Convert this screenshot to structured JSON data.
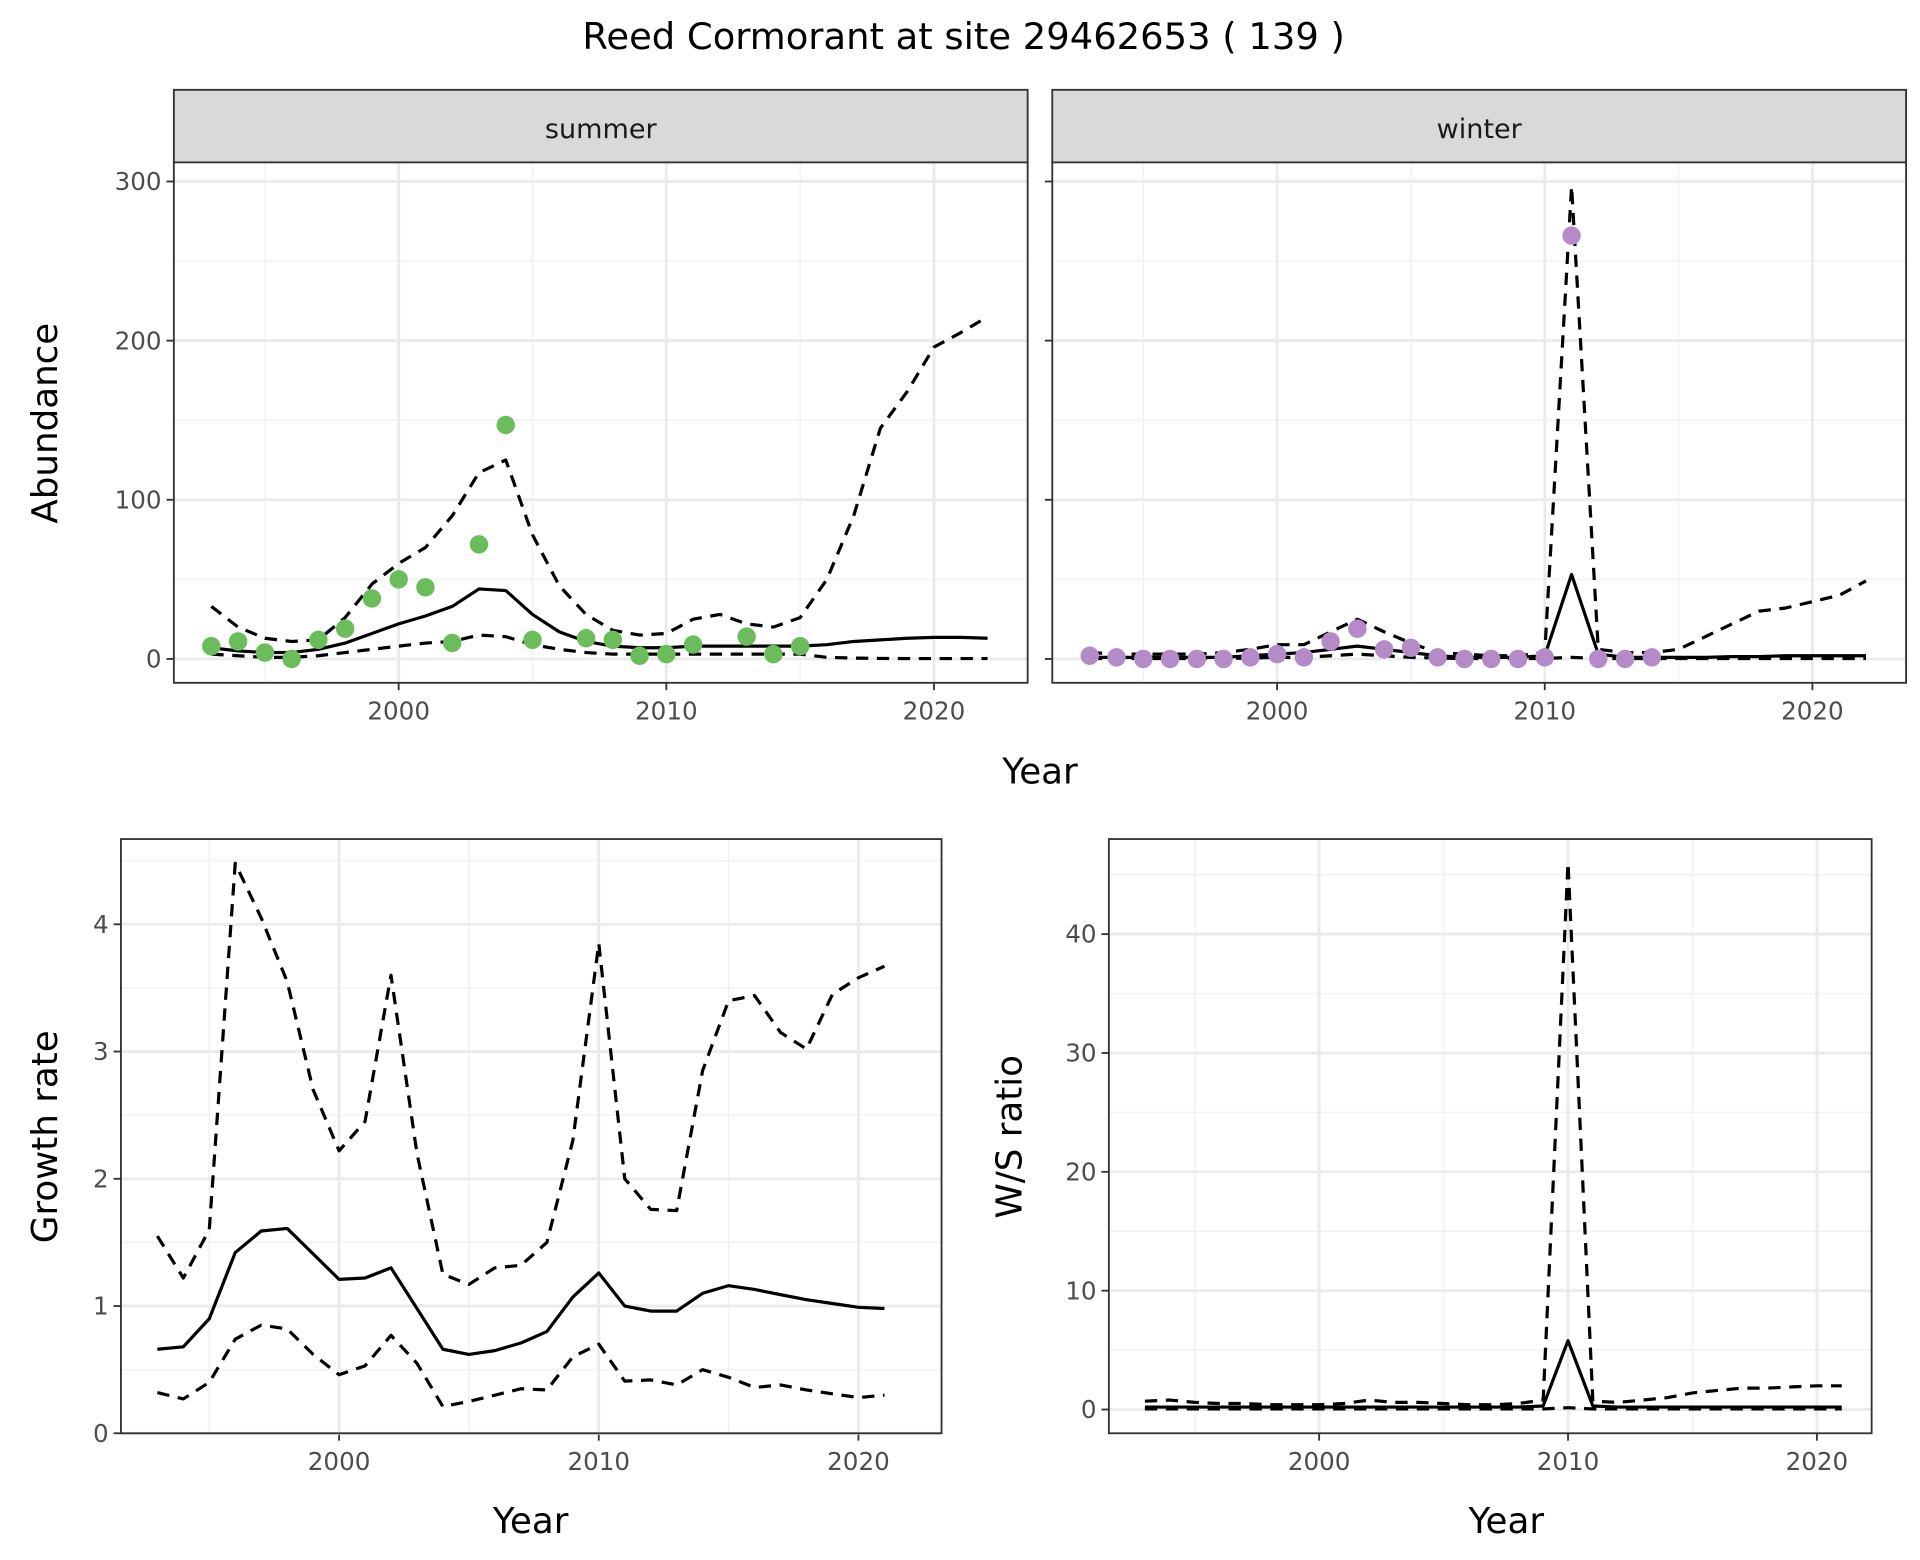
{
  "title": "Reed Cormorant at site 29462653 ( 139 )",
  "chart_data": [
    {
      "type": "line",
      "panel": "summer",
      "strip": "summer",
      "xlabel": "Year",
      "ylabel": "Abundance",
      "xlim": [
        1991.6,
        2023.5
      ],
      "ylim": [
        -15,
        312
      ],
      "xticks": [
        2000,
        2010,
        2020
      ],
      "yticks": [
        0,
        100,
        200,
        300
      ],
      "grid": true,
      "point_color": "#6ABD5A",
      "points": {
        "x": [
          1993,
          1994,
          1995,
          1996,
          1997,
          1998,
          1999,
          2000,
          2001,
          2002,
          2003,
          2004,
          2005,
          2007,
          2008,
          2009,
          2010,
          2011,
          2013,
          2014,
          2015
        ],
        "y": [
          8,
          11,
          4,
          0,
          12,
          19,
          38,
          50,
          45,
          10,
          72,
          147,
          12,
          13,
          12,
          2,
          3,
          9,
          14,
          3,
          8
        ]
      },
      "x": [
        1993,
        1994,
        1995,
        1996,
        1997,
        1998,
        1999,
        2000,
        2001,
        2002,
        2003,
        2004,
        2005,
        2006,
        2007,
        2008,
        2009,
        2010,
        2011,
        2012,
        2013,
        2014,
        2015,
        2016,
        2017,
        2018,
        2019,
        2020,
        2021,
        2022
      ],
      "series": [
        {
          "style": "solid",
          "values": [
            7,
            5,
            4,
            4,
            6,
            10,
            16,
            22,
            27,
            33,
            44,
            43,
            28,
            17,
            11,
            8,
            7,
            7,
            8,
            8,
            8,
            8,
            8,
            9,
            11,
            12,
            13,
            13.5,
            13.5,
            13
          ]
        },
        {
          "style": "dashed",
          "values": [
            33,
            20,
            13,
            11,
            12,
            26,
            47,
            60,
            70,
            90,
            117,
            125,
            78,
            46,
            28,
            18,
            15,
            16,
            25,
            28,
            22,
            20,
            26,
            50,
            90,
            145,
            168,
            196,
            205,
            215
          ]
        },
        {
          "style": "dashed",
          "values": [
            3,
            2,
            1,
            1,
            2,
            4,
            6,
            8,
            10,
            11,
            15,
            14,
            9,
            6,
            4,
            3,
            3,
            3,
            3,
            3,
            3,
            3,
            3,
            1,
            0.5,
            0.3,
            0.2,
            0.2,
            0.2,
            0.2
          ]
        }
      ]
    },
    {
      "type": "line",
      "panel": "winter",
      "strip": "winter",
      "xlim": [
        1991.6,
        2023.5
      ],
      "ylim": [
        -15,
        312
      ],
      "xticks": [
        2000,
        2010,
        2020
      ],
      "yticks": [
        0,
        100,
        200,
        300
      ],
      "grid": true,
      "point_color": "#B48AC8",
      "points": {
        "x": [
          1993,
          1994,
          1995,
          1996,
          1997,
          1998,
          1999,
          2000,
          2001,
          2002,
          2003,
          2004,
          2005,
          2006,
          2007,
          2008,
          2009,
          2010,
          2011,
          2012,
          2013,
          2014
        ],
        "y": [
          2,
          1,
          0,
          0,
          0,
          0,
          1,
          3,
          1,
          11,
          19,
          6,
          7,
          1,
          0,
          0,
          0,
          1,
          266,
          0,
          0,
          1
        ]
      },
      "x": [
        1993,
        1994,
        1995,
        1996,
        1997,
        1998,
        1999,
        2000,
        2001,
        2002,
        2003,
        2004,
        2005,
        2006,
        2007,
        2008,
        2009,
        2010,
        2011,
        2012,
        2013,
        2014,
        2015,
        2016,
        2017,
        2018,
        2019,
        2020,
        2021,
        2022
      ],
      "series": [
        {
          "style": "solid",
          "values": [
            1,
            1,
            1,
            1,
            1,
            1,
            2,
            3,
            4,
            6,
            8,
            6,
            4,
            2,
            1,
            1,
            1,
            2,
            53,
            3,
            1,
            1,
            1,
            1,
            1.5,
            1.5,
            2,
            2,
            2,
            2
          ]
        },
        {
          "style": "dashed",
          "values": [
            4,
            3,
            3,
            3,
            3,
            4,
            6,
            9,
            9,
            17,
            25,
            17,
            10,
            4,
            3,
            2,
            2,
            4,
            297,
            6,
            4,
            4,
            6,
            14,
            22,
            30,
            32,
            36,
            40,
            49
          ]
        },
        {
          "style": "dashed",
          "values": [
            0.2,
            0.2,
            0.2,
            0.2,
            0.2,
            0.3,
            0.5,
            1,
            1,
            2,
            3,
            2,
            1,
            0.5,
            0.3,
            0.2,
            0.2,
            0.3,
            1,
            0.3,
            0.2,
            0.2,
            0.2,
            0.2,
            0.2,
            0.2,
            0.2,
            0.2,
            0.2,
            0.2
          ]
        }
      ]
    },
    {
      "type": "line",
      "panel": "growth",
      "xlabel": "Year",
      "ylabel": "Growth rate",
      "xlim": [
        1991.6,
        2023.2
      ],
      "ylim": [
        0,
        4.67
      ],
      "xticks": [
        2000,
        2010,
        2020
      ],
      "yticks": [
        0,
        1,
        2,
        3,
        4
      ],
      "grid": true,
      "x": [
        1993,
        1994,
        1995,
        1996,
        1997,
        1998,
        1999,
        2000,
        2001,
        2002,
        2003,
        2004,
        2005,
        2006,
        2007,
        2008,
        2009,
        2010,
        2011,
        2012,
        2013,
        2014,
        2015,
        2016,
        2017,
        2018,
        2019,
        2020,
        2021
      ],
      "series": [
        {
          "style": "solid",
          "values": [
            0.66,
            0.68,
            0.9,
            1.42,
            1.59,
            1.61,
            1.41,
            1.21,
            1.22,
            1.3,
            0.98,
            0.66,
            0.62,
            0.65,
            0.71,
            0.8,
            1.07,
            1.26,
            1.0,
            0.96,
            0.96,
            1.1,
            1.16,
            1.13,
            1.09,
            1.05,
            1.02,
            0.99,
            0.98
          ]
        },
        {
          "style": "dashed",
          "values": [
            1.55,
            1.22,
            1.6,
            4.48,
            4.05,
            3.55,
            2.7,
            2.22,
            2.45,
            3.6,
            2.2,
            1.25,
            1.17,
            1.3,
            1.32,
            1.5,
            2.3,
            3.85,
            2.0,
            1.76,
            1.75,
            2.85,
            3.4,
            3.44,
            3.15,
            3.02,
            3.45,
            3.58,
            3.67
          ]
        },
        {
          "style": "dashed",
          "values": [
            0.32,
            0.27,
            0.4,
            0.74,
            0.85,
            0.82,
            0.62,
            0.46,
            0.53,
            0.77,
            0.55,
            0.21,
            0.25,
            0.3,
            0.35,
            0.34,
            0.6,
            0.7,
            0.41,
            0.42,
            0.38,
            0.5,
            0.44,
            0.36,
            0.38,
            0.34,
            0.31,
            0.28,
            0.3
          ]
        }
      ]
    },
    {
      "type": "line",
      "panel": "ws",
      "xlabel": "Year",
      "ylabel": "W/S ratio",
      "xlim": [
        1991.55,
        2022.2
      ],
      "ylim": [
        -2,
        48
      ],
      "xticks": [
        2000,
        2010,
        2020
      ],
      "yticks": [
        0,
        10,
        20,
        30,
        40
      ],
      "grid": true,
      "x": [
        1993,
        1994,
        1995,
        1996,
        1997,
        1998,
        1999,
        2000,
        2001,
        2002,
        2003,
        2004,
        2005,
        2006,
        2007,
        2008,
        2009,
        2010,
        2011,
        2012,
        2013,
        2014,
        2015,
        2016,
        2017,
        2018,
        2019,
        2020,
        2021
      ],
      "series": [
        {
          "style": "solid",
          "values": [
            0.2,
            0.2,
            0.2,
            0.2,
            0.2,
            0.2,
            0.2,
            0.2,
            0.2,
            0.2,
            0.2,
            0.2,
            0.2,
            0.2,
            0.2,
            0.2,
            0.3,
            5.8,
            0.3,
            0.2,
            0.2,
            0.2,
            0.2,
            0.2,
            0.2,
            0.2,
            0.2,
            0.2,
            0.2
          ]
        },
        {
          "style": "dashed",
          "values": [
            0.7,
            0.8,
            0.6,
            0.5,
            0.5,
            0.4,
            0.4,
            0.4,
            0.5,
            0.8,
            0.6,
            0.6,
            0.5,
            0.4,
            0.4,
            0.5,
            0.8,
            46,
            0.7,
            0.6,
            0.8,
            1.0,
            1.4,
            1.6,
            1.8,
            1.8,
            1.9,
            2.0,
            2.0
          ]
        },
        {
          "style": "dashed",
          "values": [
            0.05,
            0.05,
            0.05,
            0.05,
            0.05,
            0.05,
            0.05,
            0.05,
            0.05,
            0.05,
            0.05,
            0.05,
            0.05,
            0.05,
            0.05,
            0.05,
            0.05,
            0.15,
            0.05,
            0.05,
            0.05,
            0.05,
            0.05,
            0.05,
            0.05,
            0.05,
            0.05,
            0.05,
            0.05
          ]
        }
      ]
    }
  ]
}
